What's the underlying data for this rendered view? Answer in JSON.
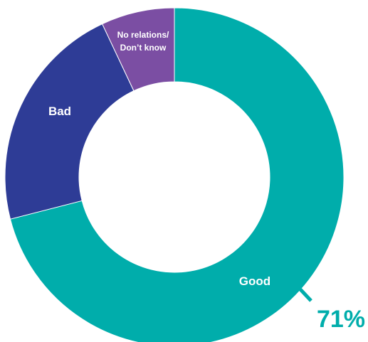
{
  "chart_data": {
    "type": "pie",
    "variant": "donut",
    "slices": [
      {
        "label": "Good",
        "value": 71,
        "color": "#00ADAB",
        "data_label": "71%"
      },
      {
        "label": "Bad",
        "value": 22,
        "color": "#2E3C96",
        "data_label": ""
      },
      {
        "label": "No relations/ Don’t know",
        "label_lines": [
          "No relations/",
          "Don’t know"
        ],
        "value": 7,
        "color": "#7B4EA3",
        "data_label": ""
      }
    ],
    "start": "12 o'clock",
    "direction": "clockwise",
    "legend": "none",
    "accent_color": "#00ADAB"
  }
}
